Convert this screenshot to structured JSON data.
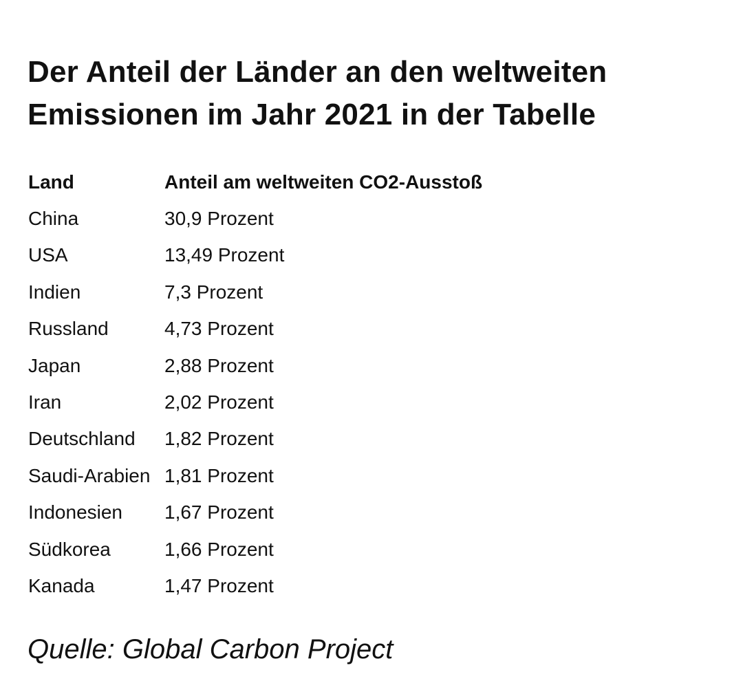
{
  "title_line1": "Der Anteil der Länder an den weltweiten",
  "title_line2": "Emissionen im Jahr 2021 in der Tabelle",
  "table": {
    "headers": [
      "Land",
      "Anteil am weltweiten CO2-Ausstoß"
    ],
    "rows": [
      [
        "China",
        "30,9 Prozent"
      ],
      [
        "USA",
        "13,49 Prozent"
      ],
      [
        "Indien",
        "7,3 Prozent"
      ],
      [
        "Russland",
        "4,73 Prozent"
      ],
      [
        "Japan",
        "2,88 Prozent"
      ],
      [
        "Iran",
        "2,02 Prozent"
      ],
      [
        "Deutschland",
        "1,82 Prozent"
      ],
      [
        "Saudi-Arabien",
        "1,81 Prozent"
      ],
      [
        "Indonesien",
        "1,67 Prozent"
      ],
      [
        "Südkorea",
        "1,66 Prozent"
      ],
      [
        "Kanada",
        "1,47 Prozent"
      ]
    ]
  },
  "source": "Quelle: Global Carbon Project"
}
